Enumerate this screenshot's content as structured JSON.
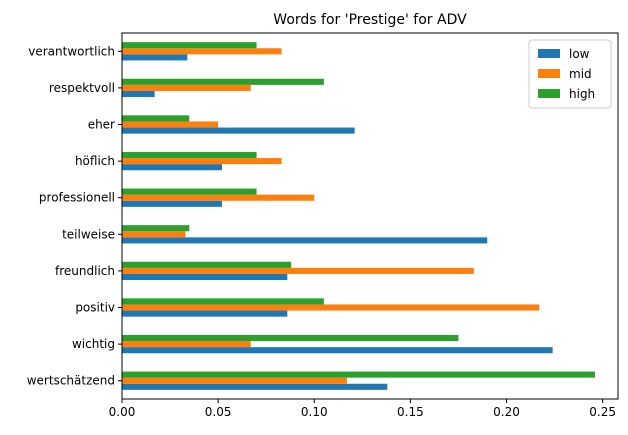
{
  "chart_data": {
    "type": "bar",
    "orientation": "horizontal",
    "title": "Words for 'Prestige' for ADV",
    "xlabel": "",
    "ylabel": "",
    "xlim": [
      0,
      0.258
    ],
    "xticks": [
      "0.00",
      "0.05",
      "0.10",
      "0.15",
      "0.20",
      "0.25"
    ],
    "grid": false,
    "legend_position": "top-right",
    "categories": [
      "wertschätzend",
      "wichtig",
      "positiv",
      "freundlich",
      "teilweise",
      "professionell",
      "höflich",
      "eher",
      "respektvoll",
      "verantwortlich"
    ],
    "series": [
      {
        "name": "low",
        "color": "#1f77b4",
        "values": [
          0.138,
          0.224,
          0.086,
          0.086,
          0.19,
          0.052,
          0.052,
          0.121,
          0.017,
          0.034
        ]
      },
      {
        "name": "mid",
        "color": "#ff7f0e",
        "values": [
          0.117,
          0.067,
          0.217,
          0.183,
          0.033,
          0.1,
          0.083,
          0.05,
          0.067,
          0.083
        ]
      },
      {
        "name": "high",
        "color": "#2ca02c",
        "values": [
          0.246,
          0.175,
          0.105,
          0.088,
          0.035,
          0.07,
          0.07,
          0.035,
          0.105,
          0.07
        ]
      }
    ]
  }
}
